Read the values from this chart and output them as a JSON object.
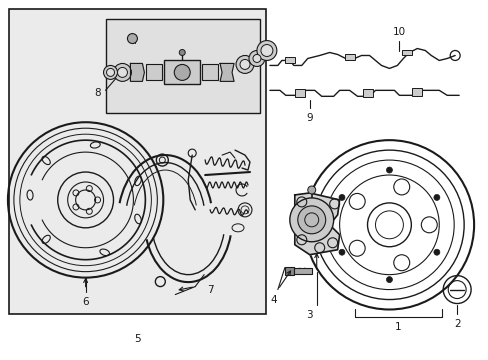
{
  "bg_color": "#ffffff",
  "box_bg": "#ebebeb",
  "inset_bg": "#e0e0e0",
  "line_color": "#1a1a1a",
  "label_color": "#000000",
  "fig_width": 4.89,
  "fig_height": 3.6,
  "dpi": 100
}
